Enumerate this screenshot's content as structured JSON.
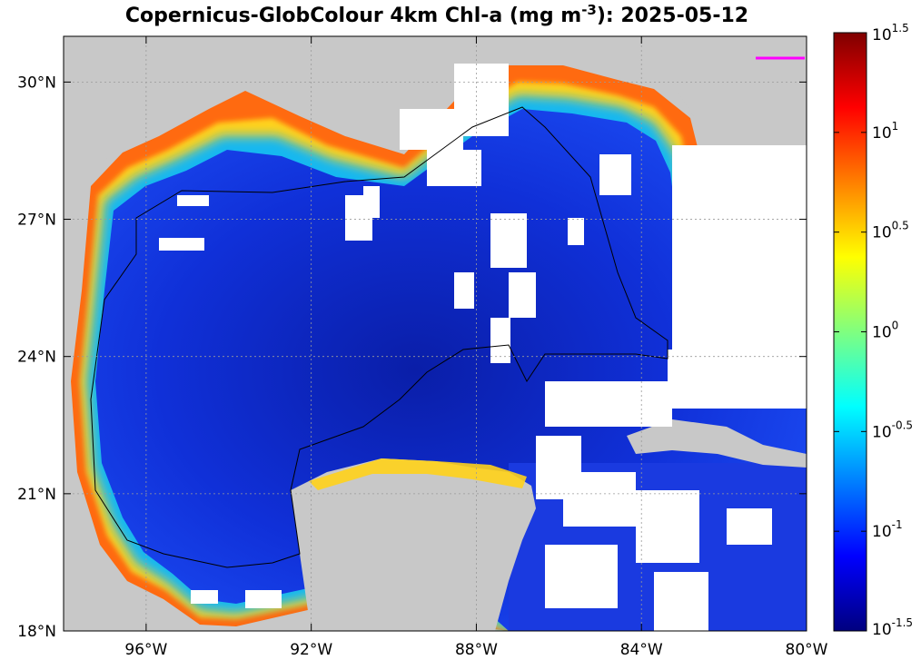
{
  "chart_data": {
    "type": "heatmap",
    "title_main": "Copernicus-GlobColour 4km Chl-a (mg m",
    "title_exp": "-3",
    "title_tail": "): 2025-05-12",
    "x_axis": {
      "range": [
        -98,
        -80
      ],
      "ticks": [
        {
          "value": -96,
          "label": "96°W"
        },
        {
          "value": -92,
          "label": "92°W"
        },
        {
          "value": -88,
          "label": "88°W"
        },
        {
          "value": -84,
          "label": "84°W"
        },
        {
          "value": -80,
          "label": "80°W"
        }
      ]
    },
    "y_axis": {
      "range": [
        18,
        31
      ],
      "ticks": [
        {
          "value": 18,
          "label": "18°N"
        },
        {
          "value": 21,
          "label": "21°N"
        },
        {
          "value": 24,
          "label": "24°N"
        },
        {
          "value": 27,
          "label": "27°N"
        },
        {
          "value": 30,
          "label": "30°N"
        }
      ]
    },
    "colorbar": {
      "scale": "log10",
      "range_exponent": [
        -1.5,
        1.5
      ],
      "ticks": [
        {
          "exp": 1.5,
          "base": "10",
          "sup": "1.5"
        },
        {
          "exp": 1,
          "base": "10",
          "sup": "1"
        },
        {
          "exp": 0.5,
          "base": "10",
          "sup": "0.5"
        },
        {
          "exp": 0,
          "base": "10",
          "sup": "0"
        },
        {
          "exp": -0.5,
          "base": "10",
          "sup": "-0.5"
        },
        {
          "exp": -1,
          "base": "10",
          "sup": "-1"
        },
        {
          "exp": -1.5,
          "base": "10",
          "sup": "-1.5"
        }
      ],
      "colormap": "jet"
    },
    "grid": true,
    "colors": {
      "land": "#c8c8c8",
      "no_data": "#ffffff",
      "coastline": "#000000",
      "marker": "#ff00ff"
    }
  }
}
